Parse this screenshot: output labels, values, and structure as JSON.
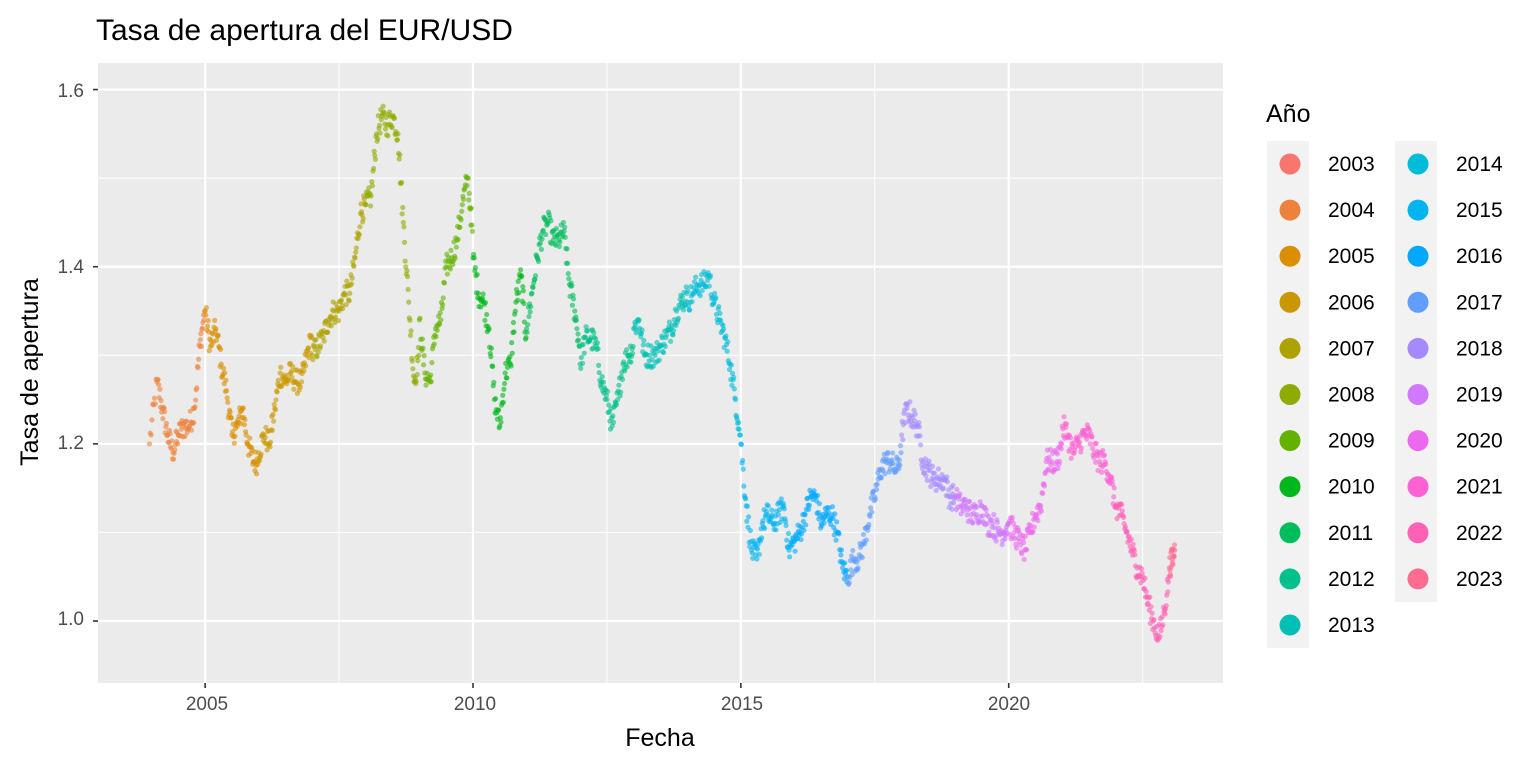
{
  "chart_data": {
    "type": "scatter",
    "title": "Tasa de apertura del EUR/USD",
    "xlabel": "Fecha",
    "ylabel": "Tasa de apertura",
    "x_ticks": [
      "2005",
      "2010",
      "2015",
      "2020"
    ],
    "y_ticks": [
      "1.0",
      "1.2",
      "1.4",
      "1.6"
    ],
    "xlim": [
      2003.0,
      2024.0
    ],
    "ylim": [
      0.93,
      1.63
    ],
    "grid": true,
    "legend": {
      "title": "Año",
      "placement": "right",
      "entries": [
        {
          "label": "2003",
          "color": "#F8766D"
        },
        {
          "label": "2004",
          "color": "#EC823C"
        },
        {
          "label": "2005",
          "color": "#DB8E00"
        },
        {
          "label": "2006",
          "color": "#C99800"
        },
        {
          "label": "2007",
          "color": "#AEA200"
        },
        {
          "label": "2008",
          "color": "#8EAB00"
        },
        {
          "label": "2009",
          "color": "#64B200"
        },
        {
          "label": "2010",
          "color": "#00B81B"
        },
        {
          "label": "2011",
          "color": "#00BD5C"
        },
        {
          "label": "2012",
          "color": "#00C08B"
        },
        {
          "label": "2013",
          "color": "#00BFB5"
        },
        {
          "label": "2014",
          "color": "#00BCD8"
        },
        {
          "label": "2015",
          "color": "#00B4F0"
        },
        {
          "label": "2016",
          "color": "#00A9FF"
        },
        {
          "label": "2017",
          "color": "#619CFF"
        },
        {
          "label": "2018",
          "color": "#A58AFF"
        },
        {
          "label": "2019",
          "color": "#D078FF"
        },
        {
          "label": "2020",
          "color": "#EC69EF"
        },
        {
          "label": "2021",
          "color": "#FD61D3"
        },
        {
          "label": "2022",
          "color": "#FF61B4"
        },
        {
          "label": "2023",
          "color": "#FF6C91"
        }
      ]
    },
    "series": [
      {
        "x": [
          2003.96,
          2004.1,
          2004.2,
          2004.3,
          2004.4,
          2004.5,
          2004.6,
          2004.7,
          2004.8,
          2004.9,
          2004.99
        ],
        "values": [
          1.2,
          1.27,
          1.24,
          1.21,
          1.19,
          1.21,
          1.22,
          1.22,
          1.24,
          1.31,
          1.35
        ]
      },
      {
        "x": [
          2005.0,
          2005.1,
          2005.2,
          2005.3,
          2005.4,
          2005.5,
          2005.6,
          2005.7,
          2005.8,
          2005.9,
          2005.99
        ],
        "values": [
          1.35,
          1.31,
          1.33,
          1.29,
          1.26,
          1.21,
          1.22,
          1.24,
          1.2,
          1.18,
          1.18
        ]
      },
      {
        "x": [
          2006.0,
          2006.1,
          2006.2,
          2006.3,
          2006.4,
          2006.5,
          2006.6,
          2006.7,
          2006.8,
          2006.9,
          2006.99
        ],
        "values": [
          1.19,
          1.21,
          1.2,
          1.24,
          1.28,
          1.27,
          1.28,
          1.27,
          1.27,
          1.3,
          1.32
        ]
      },
      {
        "x": [
          2007.0,
          2007.1,
          2007.2,
          2007.3,
          2007.4,
          2007.5,
          2007.6,
          2007.7,
          2007.8,
          2007.9,
          2007.99
        ],
        "values": [
          1.3,
          1.31,
          1.32,
          1.34,
          1.35,
          1.35,
          1.37,
          1.37,
          1.41,
          1.46,
          1.47
        ]
      },
      {
        "x": [
          2008.0,
          2008.1,
          2008.2,
          2008.3,
          2008.4,
          2008.5,
          2008.6,
          2008.7,
          2008.8,
          2008.9,
          2008.99
        ],
        "values": [
          1.47,
          1.48,
          1.55,
          1.57,
          1.56,
          1.57,
          1.55,
          1.45,
          1.36,
          1.27,
          1.3
        ]
      },
      {
        "x": [
          2009.0,
          2009.1,
          2009.2,
          2009.3,
          2009.4,
          2009.5,
          2009.6,
          2009.7,
          2009.8,
          2009.9,
          2009.99
        ],
        "values": [
          1.34,
          1.28,
          1.27,
          1.33,
          1.34,
          1.4,
          1.41,
          1.43,
          1.47,
          1.5,
          1.44
        ]
      },
      {
        "x": [
          2010.0,
          2010.1,
          2010.2,
          2010.3,
          2010.4,
          2010.5,
          2010.6,
          2010.7,
          2010.8,
          2010.9,
          2010.99
        ],
        "values": [
          1.41,
          1.37,
          1.36,
          1.33,
          1.25,
          1.22,
          1.28,
          1.29,
          1.36,
          1.39,
          1.32
        ]
      },
      {
        "x": [
          2011.0,
          2011.1,
          2011.2,
          2011.3,
          2011.4,
          2011.5,
          2011.6,
          2011.7,
          2011.8,
          2011.9,
          2011.99
        ],
        "values": [
          1.33,
          1.37,
          1.41,
          1.44,
          1.45,
          1.43,
          1.43,
          1.44,
          1.38,
          1.35,
          1.31
        ]
      },
      {
        "x": [
          2012.0,
          2012.1,
          2012.2,
          2012.3,
          2012.4,
          2012.5,
          2012.6,
          2012.7,
          2012.8,
          2012.9,
          2012.99
        ],
        "values": [
          1.29,
          1.32,
          1.32,
          1.31,
          1.27,
          1.25,
          1.22,
          1.25,
          1.29,
          1.3,
          1.31
        ]
      },
      {
        "x": [
          2013.0,
          2013.1,
          2013.2,
          2013.3,
          2013.4,
          2013.5,
          2013.6,
          2013.7,
          2013.8,
          2013.9,
          2013.99
        ],
        "values": [
          1.33,
          1.34,
          1.3,
          1.3,
          1.3,
          1.31,
          1.32,
          1.33,
          1.35,
          1.36,
          1.37
        ]
      },
      {
        "x": [
          2014.0,
          2014.1,
          2014.2,
          2014.3,
          2014.4,
          2014.5,
          2014.6,
          2014.7,
          2014.8,
          2014.9,
          2014.99
        ],
        "values": [
          1.36,
          1.37,
          1.38,
          1.38,
          1.39,
          1.36,
          1.34,
          1.32,
          1.29,
          1.25,
          1.21
        ]
      },
      {
        "x": [
          2015.0,
          2015.1,
          2015.2,
          2015.3,
          2015.4,
          2015.5,
          2015.6,
          2015.7,
          2015.8,
          2015.9,
          2015.99
        ],
        "values": [
          1.2,
          1.13,
          1.08,
          1.07,
          1.11,
          1.12,
          1.11,
          1.12,
          1.13,
          1.08,
          1.09
        ]
      },
      {
        "x": [
          2016.0,
          2016.1,
          2016.2,
          2016.3,
          2016.4,
          2016.5,
          2016.6,
          2016.7,
          2016.8,
          2016.9,
          2016.99
        ],
        "values": [
          1.09,
          1.1,
          1.12,
          1.14,
          1.14,
          1.11,
          1.12,
          1.12,
          1.1,
          1.06,
          1.05
        ]
      },
      {
        "x": [
          2017.0,
          2017.1,
          2017.2,
          2017.3,
          2017.4,
          2017.5,
          2017.6,
          2017.7,
          2017.8,
          2017.9,
          2017.99
        ],
        "values": [
          1.05,
          1.07,
          1.07,
          1.09,
          1.12,
          1.14,
          1.17,
          1.18,
          1.18,
          1.17,
          1.19
        ]
      },
      {
        "x": [
          2018.0,
          2018.1,
          2018.2,
          2018.3,
          2018.4,
          2018.5,
          2018.6,
          2018.7,
          2018.8,
          2018.9,
          2018.99
        ],
        "values": [
          1.21,
          1.24,
          1.23,
          1.22,
          1.18,
          1.17,
          1.16,
          1.16,
          1.16,
          1.14,
          1.14
        ]
      },
      {
        "x": [
          2019.0,
          2019.1,
          2019.2,
          2019.3,
          2019.4,
          2019.5,
          2019.6,
          2019.7,
          2019.8,
          2019.9,
          2019.99
        ],
        "values": [
          1.14,
          1.13,
          1.13,
          1.12,
          1.12,
          1.13,
          1.11,
          1.11,
          1.1,
          1.1,
          1.11
        ]
      },
      {
        "x": [
          2020.0,
          2020.1,
          2020.2,
          2020.3,
          2020.4,
          2020.5,
          2020.6,
          2020.7,
          2020.8,
          2020.9,
          2020.99
        ],
        "values": [
          1.11,
          1.1,
          1.09,
          1.08,
          1.1,
          1.12,
          1.13,
          1.18,
          1.18,
          1.18,
          1.2
        ]
      },
      {
        "x": [
          2021.0,
          2021.1,
          2021.2,
          2021.3,
          2021.4,
          2021.5,
          2021.6,
          2021.7,
          2021.8,
          2021.9,
          2021.99
        ],
        "values": [
          1.22,
          1.21,
          1.19,
          1.2,
          1.21,
          1.21,
          1.19,
          1.18,
          1.18,
          1.16,
          1.13
        ]
      },
      {
        "x": [
          2022.0,
          2022.1,
          2022.2,
          2022.3,
          2022.4,
          2022.5,
          2022.6,
          2022.7,
          2022.8,
          2022.9,
          2022.99
        ],
        "values": [
          1.13,
          1.12,
          1.1,
          1.08,
          1.06,
          1.05,
          1.02,
          1.0,
          0.98,
          1.01,
          1.05
        ]
      },
      {
        "x": [
          2023.0,
          2023.05,
          2023.1
        ],
        "values": [
          1.06,
          1.07,
          1.08
        ]
      }
    ]
  }
}
